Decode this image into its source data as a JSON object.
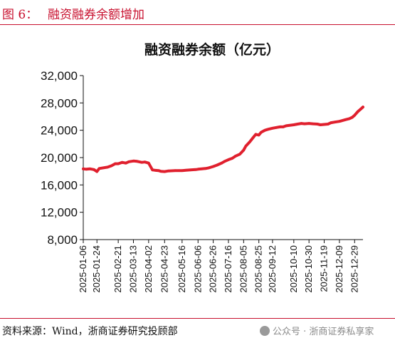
{
  "header": {
    "figure_label": "图 6：",
    "figure_title": "融资融券余额增加"
  },
  "footer": {
    "source": "资料来源：Wind，浙商证券研究投顾部",
    "watermark": "公众号 · 浙商证券私享家",
    "watermark_icon": "wechat-icon"
  },
  "chart_data": {
    "type": "line",
    "title": "融资融券余额（亿元）",
    "xlabel": "",
    "ylabel": "",
    "ylim": [
      8000,
      32000
    ],
    "yticks": [
      "8,000",
      "12,000",
      "16,000",
      "20,000",
      "24,000",
      "28,000",
      "32,000"
    ],
    "ytick_values": [
      8000,
      12000,
      16000,
      20000,
      24000,
      28000,
      32000
    ],
    "xticks": [
      "2025-01-06",
      "2025-01-24",
      "2025-02-21",
      "2025-03-13",
      "2025-04-02",
      "2025-04-23",
      "2025-05-16",
      "2025-06-06",
      "2025-06-26",
      "2025-07-16",
      "2025-08-05",
      "2025-08-25",
      "2025-09-12",
      "2025-10-10",
      "2025-10-30",
      "2025-11-19",
      "2025-12-09",
      "2025-12-29"
    ],
    "grid": false,
    "legend": "none",
    "line_color": "#e0202e",
    "series": [
      {
        "x": [
          "2025-01-06",
          "2025-01-10",
          "2025-01-15",
          "2025-01-20",
          "2025-01-24",
          "2025-01-27",
          "2025-02-07",
          "2025-02-12",
          "2025-02-17",
          "2025-02-21",
          "2025-02-26",
          "2025-03-03",
          "2025-03-07",
          "2025-03-13",
          "2025-03-18",
          "2025-03-24",
          "2025-03-28",
          "2025-04-02",
          "2025-04-07",
          "2025-04-10",
          "2025-04-15",
          "2025-04-18",
          "2025-04-23",
          "2025-04-28",
          "2025-05-07",
          "2025-05-12",
          "2025-05-16",
          "2025-05-21",
          "2025-05-27",
          "2025-06-03",
          "2025-06-06",
          "2025-06-11",
          "2025-06-16",
          "2025-06-20",
          "2025-06-26",
          "2025-07-01",
          "2025-07-07",
          "2025-07-11",
          "2025-07-16",
          "2025-07-21",
          "2025-07-25",
          "2025-07-31",
          "2025-08-05",
          "2025-08-08",
          "2025-08-13",
          "2025-08-18",
          "2025-08-21",
          "2025-08-25",
          "2025-08-28",
          "2025-09-02",
          "2025-09-05",
          "2025-09-08",
          "2025-09-12",
          "2025-09-17",
          "2025-09-22",
          "2025-09-26",
          "2025-09-30",
          "2025-10-10",
          "2025-10-15",
          "2025-10-20",
          "2025-10-24",
          "2025-10-30",
          "2025-11-04",
          "2025-11-10",
          "2025-11-14",
          "2025-11-19",
          "2025-11-24",
          "2025-11-28",
          "2025-12-03",
          "2025-12-09",
          "2025-12-12",
          "2025-12-17",
          "2025-12-22",
          "2025-12-26",
          "2025-12-29",
          "2026-01-02",
          "2026-01-06",
          "2026-01-09"
        ],
        "values": [
          18350,
          18300,
          18350,
          18250,
          17950,
          18400,
          18600,
          18800,
          19100,
          19100,
          19300,
          19200,
          19400,
          19500,
          19450,
          19300,
          19350,
          19200,
          18200,
          18150,
          18100,
          18000,
          17950,
          18050,
          18100,
          18100,
          18100,
          18150,
          18200,
          18250,
          18300,
          18350,
          18400,
          18500,
          18700,
          18900,
          19200,
          19450,
          19700,
          19900,
          20200,
          20500,
          21100,
          21700,
          22300,
          23000,
          23400,
          23300,
          23700,
          24000,
          24100,
          24200,
          24300,
          24400,
          24500,
          24500,
          24650,
          24800,
          24900,
          25000,
          24950,
          25000,
          24950,
          24900,
          24800,
          24850,
          24900,
          25100,
          25200,
          25300,
          25400,
          25550,
          25700,
          25900,
          26200,
          26700,
          27100,
          27400
        ]
      }
    ]
  }
}
